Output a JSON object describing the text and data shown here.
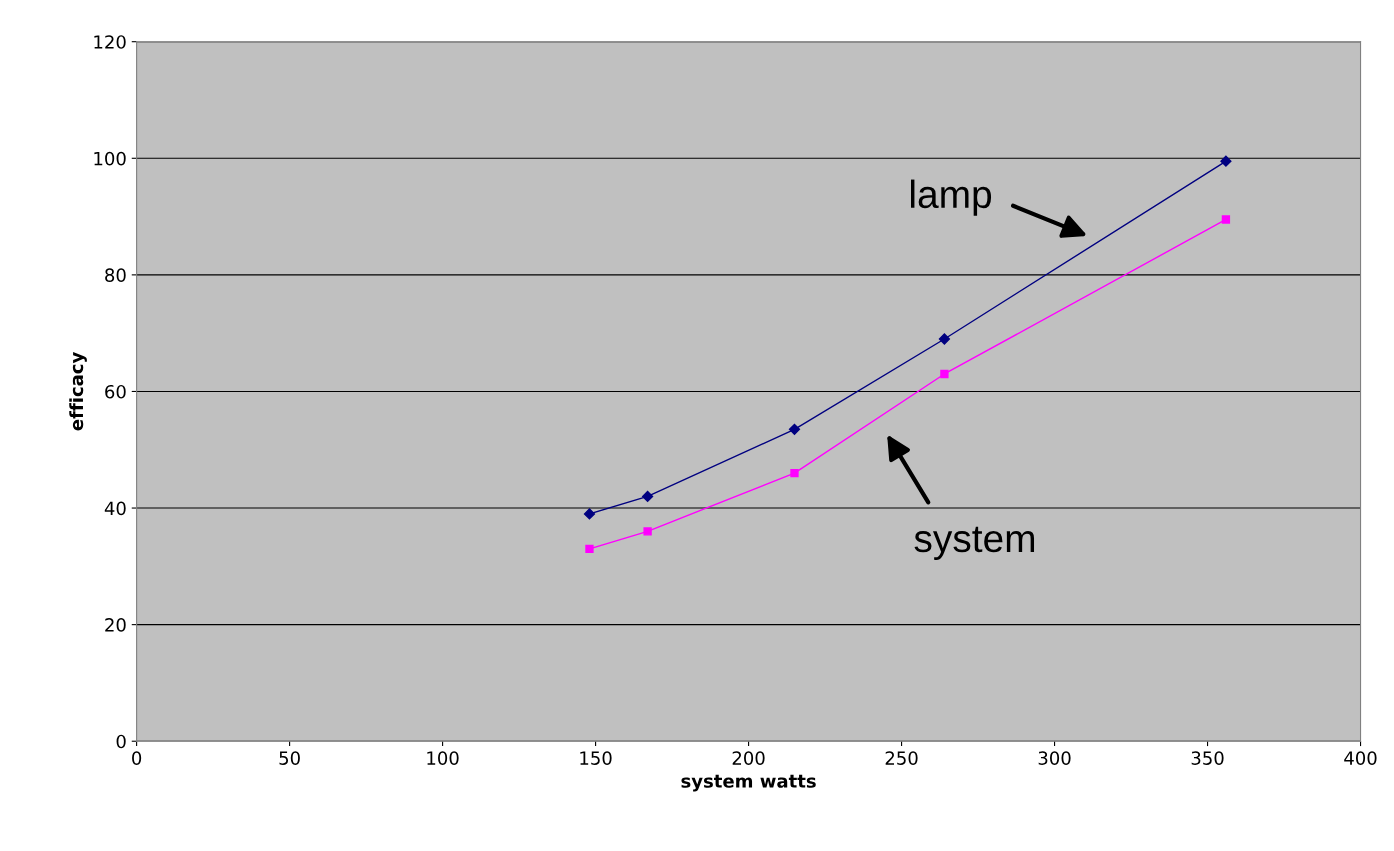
{
  "chart_data": {
    "type": "line",
    "xlabel": "system watts",
    "ylabel": "efficacy",
    "x": [
      148,
      167,
      215,
      264,
      356
    ],
    "series": [
      {
        "color": "#000080",
        "marker": "diamond",
        "values": [
          39,
          42,
          53.5,
          69,
          99.5
        ]
      },
      {
        "color": "#ff00ff",
        "marker": "square",
        "values": [
          33,
          36,
          46,
          63,
          89.5
        ]
      }
    ],
    "xlim": [
      0,
      400
    ],
    "xticks": [
      0,
      50,
      100,
      150,
      200,
      250,
      300,
      350,
      400
    ],
    "ylim": [
      0,
      120
    ],
    "yticks": [
      0,
      20,
      40,
      60,
      80,
      100,
      120
    ],
    "grid": "y",
    "annotations": [
      "lamp",
      "system"
    ]
  }
}
